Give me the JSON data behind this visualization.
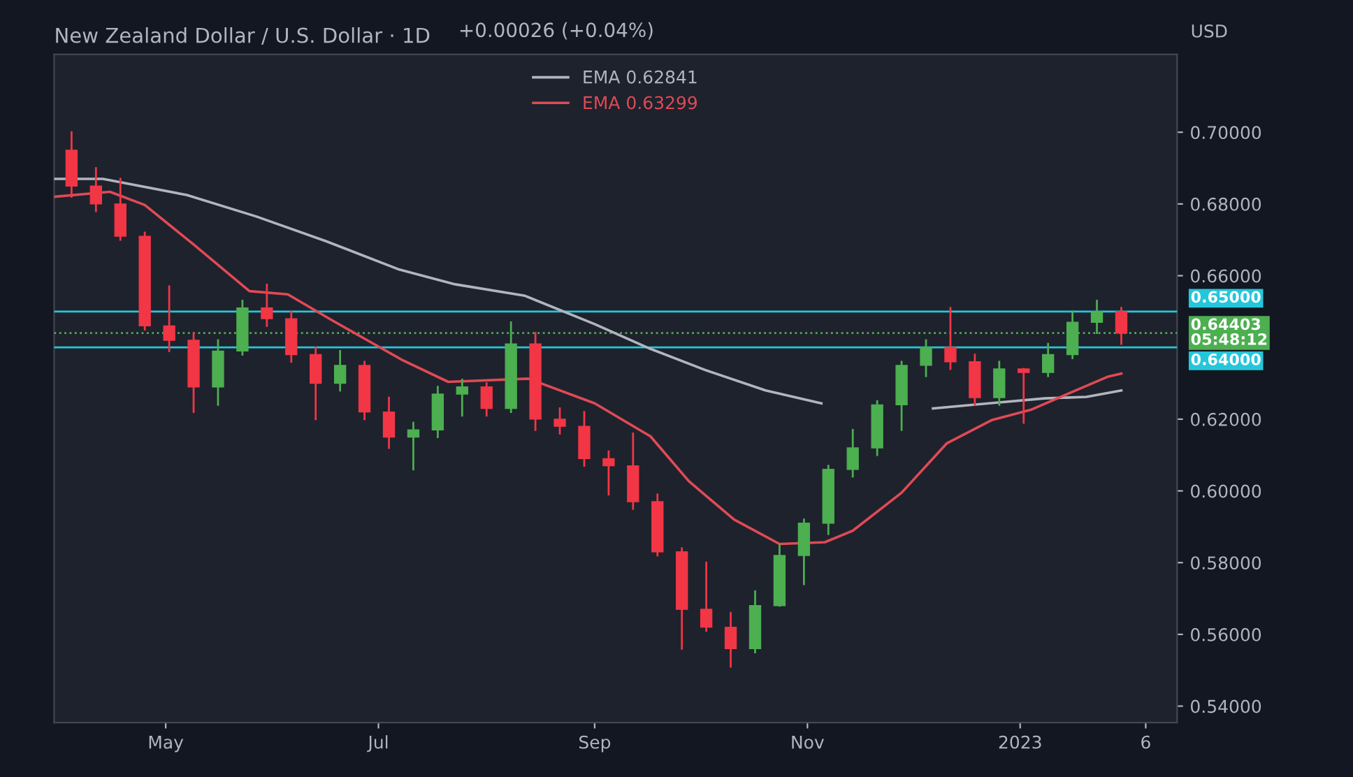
{
  "chart_data": {
    "type": "candlestick",
    "title": "New Zealand Dollar / U.S. Dollar · 1D",
    "ylabel": "USD",
    "annotations": [
      "+0.00026 (+0.04%)"
    ],
    "xlim": [
      "2022-03-30",
      "2023-02-15"
    ],
    "xticks": [
      {
        "value": "2022-05-01",
        "label": "May"
      },
      {
        "value": "2022-07-01",
        "label": "Jul"
      },
      {
        "value": "2022-09-01",
        "label": "Sep"
      },
      {
        "value": "2022-11-01",
        "label": "Nov"
      },
      {
        "value": "2023-01-01",
        "label": "2023"
      },
      {
        "value": "2023-02-06",
        "label": "6"
      }
    ],
    "ylim": [
      0.5354,
      0.7217
    ],
    "yticks": [
      {
        "value": 0.54,
        "label": "0.54000"
      },
      {
        "value": 0.56,
        "label": "0.56000"
      },
      {
        "value": 0.58,
        "label": "0.58000"
      },
      {
        "value": 0.6,
        "label": "0.60000"
      },
      {
        "value": 0.62,
        "label": "0.62000"
      },
      {
        "value": 0.66,
        "label": "0.66000"
      },
      {
        "value": 0.68,
        "label": "0.68000"
      },
      {
        "value": 0.7,
        "label": "0.70000"
      }
    ],
    "ref_lines": [
      {
        "axis": "y",
        "value": 0.65,
        "label": "0.65000",
        "color": "#26c6da",
        "line_style": "solid"
      },
      {
        "axis": "y",
        "value": 0.64,
        "label": "0.64000",
        "color": "#26c6da",
        "line_style": "solid"
      },
      {
        "axis": "y",
        "value": 0.64403,
        "label": "0.64403\n05:48:12",
        "color": "#4caf50",
        "line_style": "dotted"
      }
    ],
    "legend": "top center",
    "series": [
      {
        "x": [
          "2022-04-04",
          "2022-04-11",
          "2022-04-18",
          "2022-04-25",
          "2022-05-02",
          "2022-05-09",
          "2022-05-16",
          "2022-05-23",
          "2022-05-30",
          "2022-06-06",
          "2022-06-13",
          "2022-06-20",
          "2022-06-27",
          "2022-07-04",
          "2022-07-11",
          "2022-07-18",
          "2022-07-25",
          "2022-08-01",
          "2022-08-08",
          "2022-08-15",
          "2022-08-22",
          "2022-08-29",
          "2022-09-05",
          "2022-09-12",
          "2022-09-19",
          "2022-09-26",
          "2022-10-03",
          "2022-10-10",
          "2022-10-17",
          "2022-10-24",
          "2022-10-31",
          "2022-11-07",
          "2022-11-14",
          "2022-11-21",
          "2022-11-28",
          "2022-12-05",
          "2022-12-12",
          "2022-12-19",
          "2022-12-26",
          "2023-01-02",
          "2023-01-09",
          "2023-01-16",
          "2023-01-23",
          "2023-01-30"
        ],
        "ohlc": [
          [
            0.695,
            0.7,
            0.682,
            0.685
          ],
          [
            0.685,
            0.69,
            0.678,
            0.68
          ],
          [
            0.68,
            0.687,
            0.67,
            0.671
          ],
          [
            0.671,
            0.672,
            0.645,
            0.646
          ],
          [
            0.646,
            0.657,
            0.639,
            0.642
          ],
          [
            0.642,
            0.644,
            0.622,
            0.629
          ],
          [
            0.629,
            0.642,
            0.624,
            0.639
          ],
          [
            0.639,
            0.653,
            0.638,
            0.651
          ],
          [
            0.651,
            0.6575,
            0.646,
            0.648
          ],
          [
            0.648,
            0.65,
            0.636,
            0.638
          ],
          [
            0.638,
            0.64,
            0.62,
            0.63
          ],
          [
            0.63,
            0.639,
            0.628,
            0.635
          ],
          [
            0.635,
            0.636,
            0.62,
            0.622
          ],
          [
            0.622,
            0.626,
            0.612,
            0.615
          ],
          [
            0.615,
            0.619,
            0.606,
            0.617
          ],
          [
            0.617,
            0.629,
            0.615,
            0.627
          ],
          [
            0.627,
            0.631,
            0.621,
            0.629
          ],
          [
            0.629,
            0.63,
            0.621,
            0.623
          ],
          [
            0.623,
            0.647,
            0.622,
            0.641
          ],
          [
            0.641,
            0.644,
            0.617,
            0.62
          ],
          [
            0.62,
            0.623,
            0.616,
            0.618
          ],
          [
            0.618,
            0.622,
            0.607,
            0.609
          ],
          [
            0.609,
            0.611,
            0.599,
            0.607
          ],
          [
            0.607,
            0.616,
            0.595,
            0.597
          ],
          [
            0.597,
            0.599,
            0.582,
            0.583
          ],
          [
            0.583,
            0.584,
            0.556,
            0.567
          ],
          [
            0.567,
            0.58,
            0.561,
            0.562
          ],
          [
            0.562,
            0.566,
            0.551,
            0.556
          ],
          [
            0.556,
            0.572,
            0.555,
            0.568
          ],
          [
            0.568,
            0.585,
            0.568,
            0.582
          ],
          [
            0.582,
            0.592,
            0.574,
            0.591
          ],
          [
            0.591,
            0.607,
            0.588,
            0.606
          ],
          [
            0.606,
            0.617,
            0.604,
            0.612
          ],
          [
            0.612,
            0.625,
            0.61,
            0.624
          ],
          [
            0.624,
            0.636,
            0.617,
            0.635
          ],
          [
            0.635,
            0.642,
            0.632,
            0.64
          ],
          [
            0.64,
            0.651,
            0.634,
            0.636
          ],
          [
            0.636,
            0.638,
            0.624,
            0.626
          ],
          [
            0.626,
            0.636,
            0.624,
            0.634
          ],
          [
            0.634,
            0.634,
            0.619,
            0.633
          ],
          [
            0.633,
            0.641,
            0.632,
            0.638
          ],
          [
            0.638,
            0.65,
            0.637,
            0.647
          ],
          [
            0.647,
            0.653,
            0.644,
            0.65
          ],
          [
            0.65,
            0.651,
            0.641,
            0.644
          ]
        ],
        "colors": [
          "#f23645",
          "#f23645",
          "#f23645",
          "#f23645",
          "#f23645",
          "#f23645",
          "#4caf50",
          "#4caf50",
          "#f23645",
          "#f23645",
          "#f23645",
          "#4caf50",
          "#f23645",
          "#f23645",
          "#4caf50",
          "#4caf50",
          "#4caf50",
          "#f23645",
          "#4caf50",
          "#f23645",
          "#f23645",
          "#f23645",
          "#f23645",
          "#f23645",
          "#f23645",
          "#f23645",
          "#f23645",
          "#f23645",
          "#4caf50",
          "#4caf50",
          "#4caf50",
          "#4caf50",
          "#4caf50",
          "#4caf50",
          "#4caf50",
          "#4caf50",
          "#f23645",
          "#f23645",
          "#4caf50",
          "#f23645",
          "#4caf50",
          "#4caf50",
          "#4caf50",
          "#f23645"
        ]
      },
      {
        "type": "line",
        "name": "EMA 0.62841",
        "color": "#b2b5be",
        "x": [
          "2022-03-30",
          "2022-04-13",
          "2022-05-07",
          "2022-05-27",
          "2022-06-16",
          "2022-07-07",
          "2022-07-23",
          "2022-08-12",
          "2022-09-01",
          "2022-09-17",
          "2022-10-03",
          "2022-10-20",
          "2022-11-05",
          "2022-11-21",
          "2022-12-07",
          "2022-12-23",
          "2023-01-08",
          "2023-01-20",
          "2023-01-30"
        ],
        "values": [
          0.687,
          0.687,
          0.6825,
          0.6765,
          0.6696,
          0.6617,
          0.6576,
          0.6544,
          0.6465,
          0.6396,
          0.6336,
          0.628,
          0.6244,
          null,
          0.623,
          0.6244,
          0.6258,
          0.6262,
          0.628
        ]
      },
      {
        "type": "line",
        "name": "EMA 0.63299",
        "color": "#e04a55",
        "x": [
          "2022-03-30",
          "2022-04-15",
          "2022-04-25",
          "2022-05-09",
          "2022-05-25",
          "2022-06-05",
          "2022-06-18",
          "2022-07-08",
          "2022-07-21",
          "2022-08-13",
          "2022-09-01",
          "2022-09-17",
          "2022-09-28",
          "2022-10-11",
          "2022-10-24",
          "2022-11-06",
          "2022-11-14",
          "2022-11-28",
          "2022-12-11",
          "2022-12-24",
          "2023-01-04",
          "2023-01-15",
          "2023-01-26",
          "2023-01-30"
        ],
        "values": [
          0.682,
          0.6834,
          0.6797,
          0.6687,
          0.6557,
          0.6548,
          0.6474,
          0.6364,
          0.6304,
          0.6313,
          0.6244,
          0.6152,
          0.6027,
          0.592,
          0.5852,
          0.5857,
          0.5889,
          0.5995,
          0.6133,
          0.6198,
          0.6226,
          0.6272,
          0.6318,
          0.6327
        ]
      }
    ]
  }
}
